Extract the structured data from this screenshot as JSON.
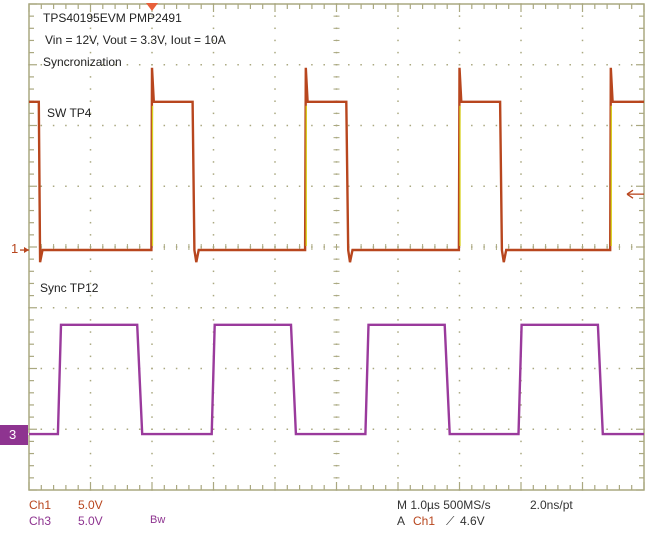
{
  "annotations": {
    "title": "TPS40195EVM PMP2491",
    "conditions": "Vin = 12V, Vout = 3.3V, Iout = 10A",
    "subtitle": "Syncronization"
  },
  "markers": {
    "ch1_ground": "1",
    "ch3_ground": "3"
  },
  "footer": {
    "ch1_label": "Ch1",
    "ch1_scale": "5.0V",
    "ch3_label": "Ch3",
    "ch3_scale": "5.0V",
    "bw_limit": "Bw",
    "timebase": "M 1.0µs 500MS/s",
    "record": "2.0ns/pt",
    "trigger_prefix": "A",
    "trigger_source": "Ch1",
    "trigger_slope": "⟋",
    "trigger_level": "4.6V"
  },
  "colors": {
    "ch1": "#b8461e",
    "ch1_edge": "#d8d21c",
    "ch3": "#9a3a9c",
    "grid": "#aaa880",
    "ch3_marker_bg": "#8e3490",
    "trigger": "#e8603a"
  },
  "chart_data": {
    "type": "line",
    "title": "",
    "xlabel": "",
    "ylabel": "",
    "x_unit": "µs",
    "xlim": [
      -2,
      8
    ],
    "grid": true,
    "horizontal_divisions": 10,
    "vertical_divisions": 8,
    "trigger": {
      "time": 0,
      "level": 4.6,
      "source": "Ch1"
    },
    "series": [
      {
        "name": "SW TP4",
        "channel": "Ch1",
        "volts_per_div": 5.0,
        "points": [
          [
            -2,
            12.2
          ],
          [
            -1.84,
            12.2
          ],
          [
            -1.82,
            -1
          ],
          [
            -1.78,
            0
          ],
          [
            -0.01,
            0
          ],
          [
            0,
            15
          ],
          [
            0.03,
            12.2
          ],
          [
            0.66,
            12.2
          ],
          [
            0.69,
            0
          ],
          [
            0.72,
            -1
          ],
          [
            0.76,
            0
          ],
          [
            2.49,
            0
          ],
          [
            2.5,
            15
          ],
          [
            2.53,
            12.2
          ],
          [
            3.16,
            12.2
          ],
          [
            3.19,
            0
          ],
          [
            3.22,
            -1
          ],
          [
            3.26,
            0
          ],
          [
            4.99,
            0
          ],
          [
            5.0,
            15
          ],
          [
            5.03,
            12.2
          ],
          [
            5.66,
            12.2
          ],
          [
            5.69,
            0
          ],
          [
            5.72,
            -1
          ],
          [
            5.76,
            0
          ],
          [
            7.45,
            0
          ],
          [
            7.46,
            15
          ],
          [
            7.49,
            12.2
          ],
          [
            8,
            12.2
          ]
        ]
      },
      {
        "name": "Sync TP12",
        "channel": "Ch3",
        "volts_per_div": 5.0,
        "points": [
          [
            -2,
            0
          ],
          [
            -1.53,
            0
          ],
          [
            -1.48,
            9
          ],
          [
            -0.24,
            9
          ],
          [
            -0.16,
            0
          ],
          [
            0.97,
            0
          ],
          [
            1.02,
            9
          ],
          [
            2.26,
            9
          ],
          [
            2.34,
            0
          ],
          [
            3.47,
            0
          ],
          [
            3.52,
            9
          ],
          [
            4.76,
            9
          ],
          [
            4.84,
            0
          ],
          [
            5.96,
            0
          ],
          [
            6.01,
            9
          ],
          [
            7.25,
            9
          ],
          [
            7.33,
            0
          ],
          [
            8,
            0
          ]
        ]
      }
    ]
  }
}
